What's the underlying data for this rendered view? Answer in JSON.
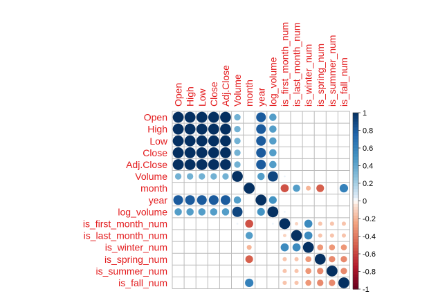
{
  "chart_data": {
    "type": "heatmap",
    "variables": [
      "Open",
      "High",
      "Low",
      "Close",
      "Adj.Close",
      "Volume",
      "month",
      "year",
      "log_volume",
      "is_first_month_num",
      "is_last_month_num",
      "is_winter_num",
      "is_spring_num",
      "is_summer_num",
      "is_fall_num"
    ],
    "values": [
      [
        1,
        1,
        1,
        1,
        1,
        0.35,
        0,
        0.8,
        0.45,
        0,
        0,
        0,
        0,
        0,
        0
      ],
      [
        1,
        1,
        1,
        1,
        1,
        0.35,
        0,
        0.8,
        0.45,
        0,
        0,
        0,
        0,
        0,
        0
      ],
      [
        1,
        1,
        1,
        1,
        1,
        0.35,
        0,
        0.8,
        0.45,
        0,
        0,
        0,
        0,
        0,
        0
      ],
      [
        1,
        1,
        1,
        1,
        1,
        0.35,
        0,
        0.8,
        0.45,
        0,
        0,
        0,
        0,
        0,
        0
      ],
      [
        1,
        1,
        1,
        1,
        1,
        0.35,
        0,
        0.8,
        0.45,
        0,
        0,
        0,
        0,
        0,
        0
      ],
      [
        0.35,
        0.35,
        0.35,
        0.35,
        0.35,
        1,
        0,
        0.45,
        0.9,
        0.03,
        0,
        0,
        0,
        0,
        0
      ],
      [
        0,
        0,
        0,
        0,
        0,
        0,
        1,
        0,
        0,
        -0.55,
        0.45,
        -0.2,
        -0.5,
        0,
        0.6
      ],
      [
        0.8,
        0.8,
        0.8,
        0.8,
        0.8,
        0.45,
        0,
        1,
        0.5,
        0,
        0,
        0,
        0,
        0,
        0
      ],
      [
        0.45,
        0.45,
        0.45,
        0.45,
        0.45,
        0.9,
        0,
        0.5,
        1,
        0.03,
        0,
        0,
        0,
        0,
        0
      ],
      [
        0,
        0,
        0,
        0,
        0,
        0.03,
        -0.55,
        0,
        0.03,
        1,
        -0.1,
        0.55,
        -0.15,
        -0.15,
        -0.15
      ],
      [
        0,
        0,
        0,
        0,
        0,
        0,
        0.45,
        0,
        0,
        -0.1,
        1,
        0.55,
        -0.15,
        -0.15,
        -0.15
      ],
      [
        0,
        0,
        0,
        0,
        0,
        0,
        -0.2,
        0,
        0,
        0.55,
        0.55,
        1,
        -0.3,
        -0.3,
        -0.3
      ],
      [
        0,
        0,
        0,
        0,
        0,
        0,
        -0.5,
        0,
        0,
        -0.15,
        -0.15,
        -0.3,
        1,
        -0.35,
        -0.35
      ],
      [
        0,
        0,
        0,
        0,
        0,
        0,
        0,
        0,
        0,
        -0.15,
        -0.15,
        -0.3,
        -0.35,
        1,
        -0.35
      ],
      [
        0,
        0,
        0,
        0,
        0,
        0,
        0.6,
        0,
        0,
        -0.15,
        -0.15,
        -0.3,
        -0.35,
        -0.35,
        1
      ]
    ],
    "legend_ticks": [
      "-1",
      "-0.8",
      "-0.6",
      "-0.4",
      "-0.2",
      "0",
      "0.2",
      "0.4",
      "0.6",
      "0.8",
      "1"
    ],
    "legend_range": [
      -1,
      1
    ],
    "grid": true,
    "legend_position": "right",
    "title": "",
    "xlabel": "",
    "ylabel": "",
    "colors": {
      "label": "#e31a1c",
      "grid": "#bbbbbb",
      "negative_end": "#67001f",
      "neutral": "#ffffff",
      "positive_end": "#053061"
    }
  }
}
